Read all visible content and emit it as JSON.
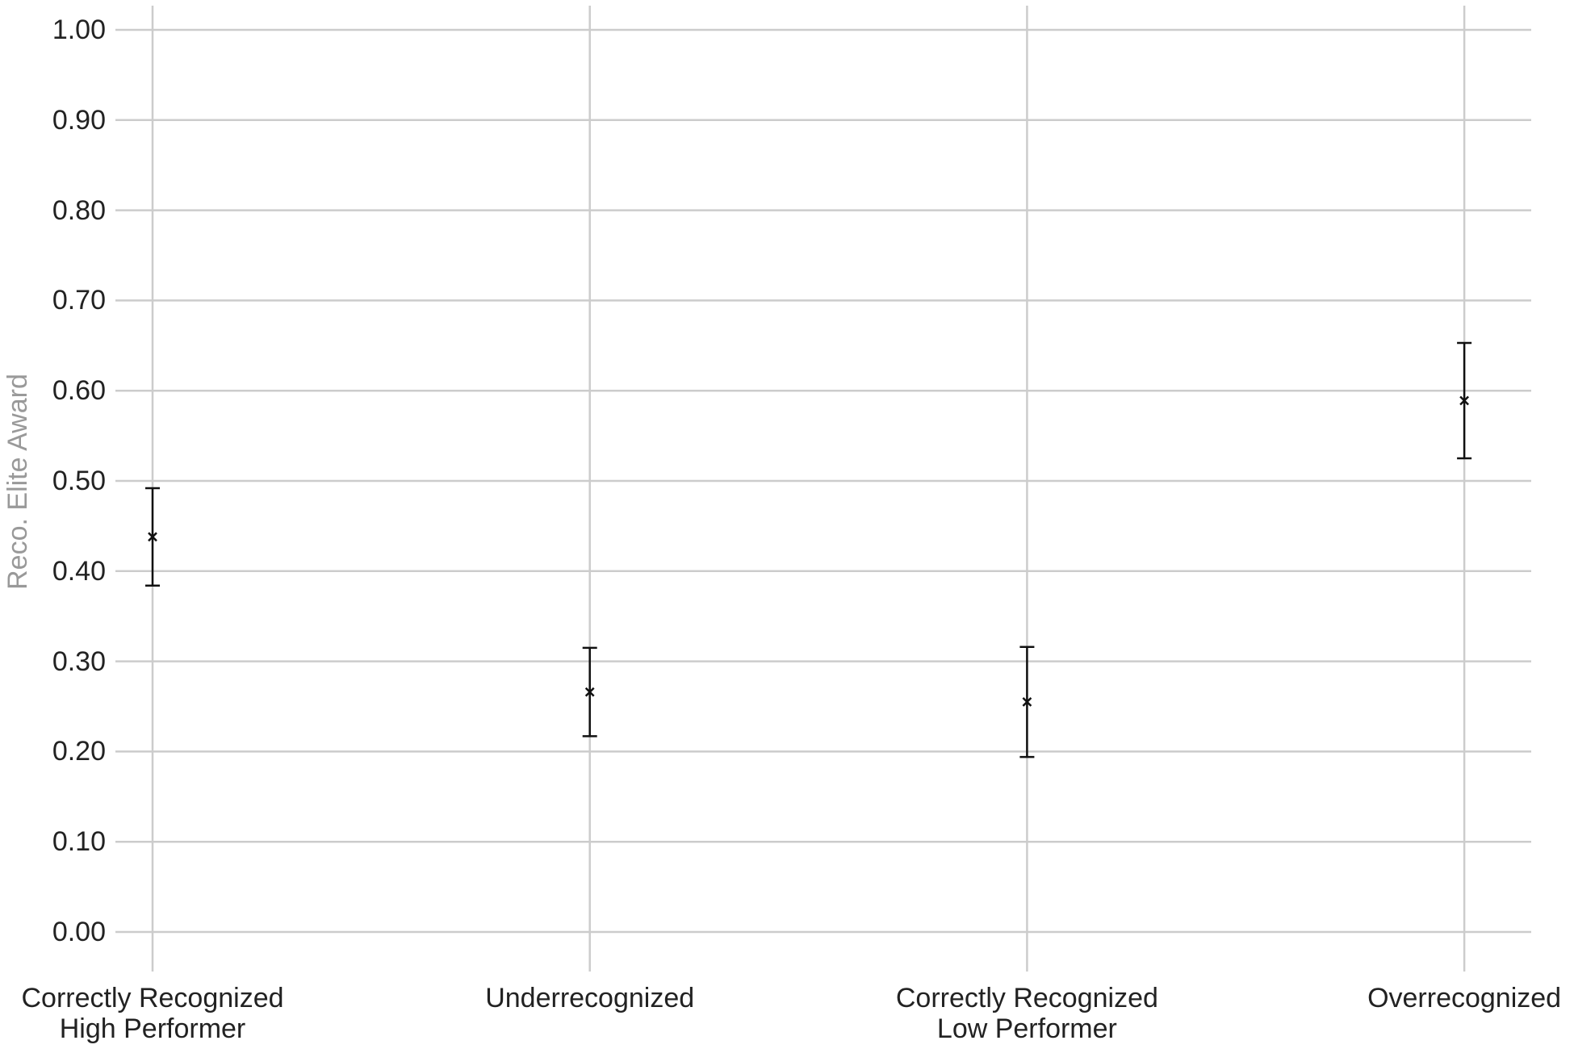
{
  "chart_data": {
    "type": "errorbar",
    "ylabel": "Reco. Elite Award",
    "categories": [
      "Correctly Recognized\nHigh Performer",
      "Underrecognized",
      "Correctly Recognized\nLow Performer",
      "Overrecognized"
    ],
    "values": [
      0.438,
      0.266,
      0.255,
      0.589
    ],
    "errors": [
      0.054,
      0.049,
      0.061,
      0.064
    ],
    "color": "#111111",
    "ylim": [
      0,
      1
    ],
    "yticks": [
      {
        "value": 0,
        "label": "0.00"
      },
      {
        "value": 0.1,
        "label": "0.10"
      },
      {
        "value": 0.2,
        "label": "0.20"
      },
      {
        "value": 0.3,
        "label": "0.30"
      },
      {
        "value": 0.4,
        "label": "0.40"
      },
      {
        "value": 0.5,
        "label": "0.50"
      },
      {
        "value": 0.6,
        "label": "0.60"
      },
      {
        "value": 0.7,
        "label": "0.70"
      },
      {
        "value": 0.8,
        "label": "0.80"
      },
      {
        "value": 0.9,
        "label": "0.90"
      },
      {
        "value": 1,
        "label": "1.00"
      }
    ],
    "grid": true
  }
}
